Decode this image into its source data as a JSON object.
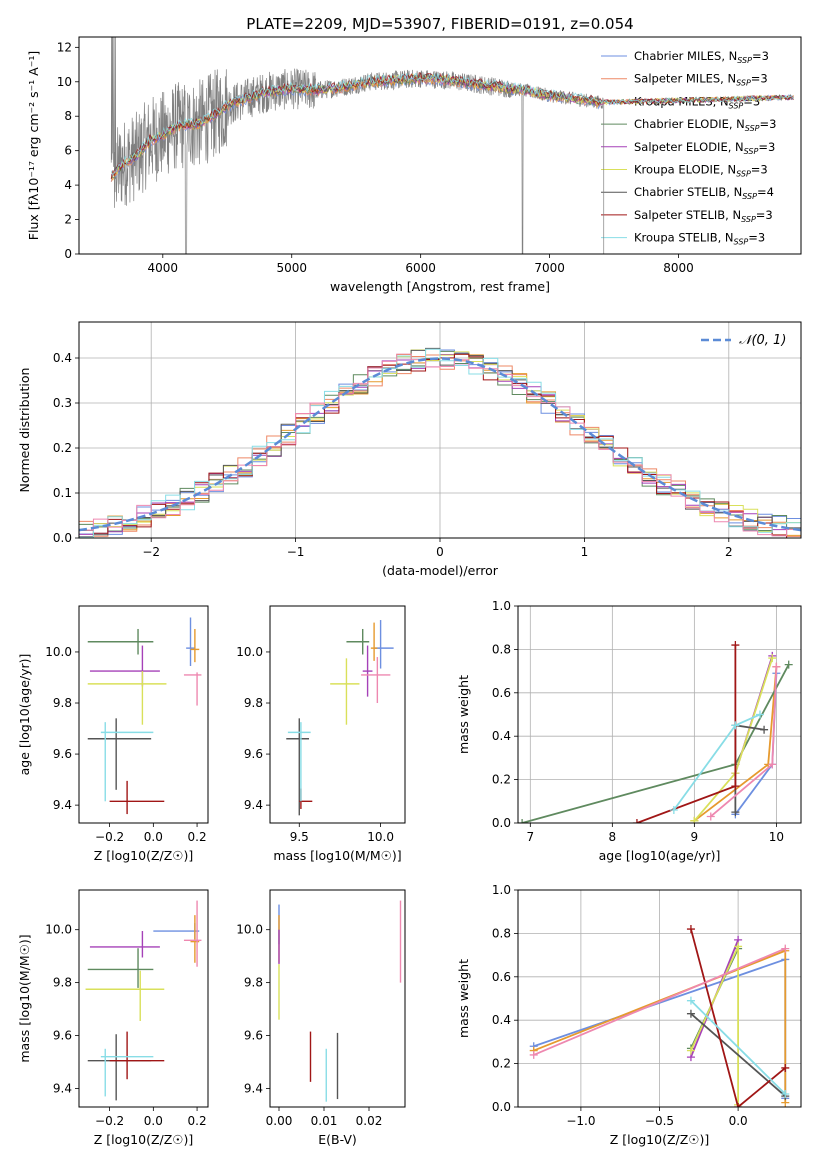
{
  "title": "PLATE=2209, MJD=53907, FIBERID=0191, z=0.054",
  "colors": [
    "#6d8fe0",
    "#ee8866",
    "#e69a2e",
    "#5f8a5f",
    "#a541b8",
    "#d9e05a",
    "#555555",
    "#a01616",
    "#88dde6",
    "#ee88b0"
  ],
  "legend": [
    {
      "label": "Chabrier MILES, N$_{SSP}$=3",
      "base": "Chabrier MILES, N",
      "sub": "SSP",
      "tail": "=3",
      "color": "#6d8fe0"
    },
    {
      "label": "Salpeter MILES, N$_{SSP}$=3",
      "base": "Salpeter MILES, N",
      "sub": "SSP",
      "tail": "=3",
      "color": "#ee8866"
    },
    {
      "label": "Kroupa MILES, N$_{SSP}$=3",
      "base": "Kroupa MILES, N",
      "sub": "SSP",
      "tail": "=3",
      "color": "#e69a2e"
    },
    {
      "label": "Chabrier ELODIE, N$_{SSP}$=3",
      "base": "Chabrier ELODIE, N",
      "sub": "SSP",
      "tail": "=3",
      "color": "#5f8a5f"
    },
    {
      "label": "Salpeter ELODIE, N$_{SSP}$=3",
      "base": "Salpeter ELODIE, N",
      "sub": "SSP",
      "tail": "=3",
      "color": "#a541b8"
    },
    {
      "label": "Kroupa ELODIE, N$_{SSP}$=3",
      "base": "Kroupa ELODIE, N",
      "sub": "SSP",
      "tail": "=3",
      "color": "#d9e05a"
    },
    {
      "label": "Chabrier STELIB, N$_{SSP}$=4",
      "base": "Chabrier STELIB, N",
      "sub": "SSP",
      "tail": "=4",
      "color": "#555555"
    },
    {
      "label": "Salpeter STELIB, N$_{SSP}$=3",
      "base": "Salpeter STELIB, N",
      "sub": "SSP",
      "tail": "=3",
      "color": "#a01616"
    },
    {
      "label": "Kroupa STELIB, N$_{SSP}$=3",
      "base": "Kroupa STELIB, N",
      "sub": "SSP",
      "tail": "=3",
      "color": "#88dde6"
    }
  ],
  "chart_data": [
    {
      "id": "spectrum",
      "type": "line",
      "title": "PLATE=2209, MJD=53907, FIBERID=0191, z=0.054",
      "xlabel": "wavelength [Angstrom, rest frame]",
      "ylabel": "Flux [fλ10⁻¹⁷ erg cm⁻² s⁻¹ A⁻¹]",
      "xlim": [
        3350,
        8950
      ],
      "ylim": [
        0,
        12.6
      ],
      "xticks": [
        4000,
        5000,
        6000,
        7000,
        8000
      ],
      "yticks": [
        0,
        2,
        4,
        6,
        8,
        10,
        12
      ],
      "grid": false,
      "legend_position": "top-right",
      "data_color": "#808080",
      "data_range": [
        3600,
        7420
      ],
      "model_envelope": {
        "x": [
          3600,
          3700,
          3800,
          3900,
          4000,
          4100,
          4200,
          4300,
          4400,
          4500,
          4600,
          4800,
          5000,
          5200,
          5400,
          5600,
          5800,
          6000,
          6200,
          6400,
          6600,
          6800,
          7000,
          7200,
          7400
        ],
        "y": [
          4.5,
          5.3,
          5.7,
          6.6,
          6.9,
          7.4,
          7.5,
          7.6,
          8.1,
          8.6,
          8.9,
          9.4,
          9.6,
          9.5,
          9.7,
          10.0,
          10.1,
          10.2,
          10.1,
          9.9,
          9.7,
          9.5,
          9.2,
          9.0,
          8.8
        ]
      }
    },
    {
      "id": "residual-histogram",
      "type": "line",
      "xlabel": "(data-model)/error",
      "ylabel": "Normed distribution",
      "xlim": [
        -2.5,
        2.5
      ],
      "ylim": [
        0,
        0.48
      ],
      "xticks": [
        -2,
        -1,
        0,
        1,
        2
      ],
      "yticks": [
        0.0,
        0.1,
        0.2,
        0.3,
        0.4
      ],
      "grid": true,
      "legend_position": "top-right",
      "reference_curve": {
        "label": "𝒩(0, 1)",
        "color": "#5b8bd6"
      },
      "bin_width": 0.1
    },
    {
      "id": "age-vs-metallicity",
      "type": "scatter",
      "xlabel": "Z [log10(Z/Z☉)]",
      "ylabel": "age [log10(age/yr)]",
      "xlim": [
        -0.34,
        0.25
      ],
      "ylim": [
        9.33,
        10.18
      ],
      "xticks": [
        -0.2,
        0.0,
        0.2
      ],
      "yticks": [
        9.4,
        9.6,
        9.8,
        10.0
      ],
      "grid": false,
      "errorbars": [
        {
          "x": 0.17,
          "y": 10.015,
          "xerr": [
            0.02,
            0.02
          ],
          "yerr": [
            0.07,
            0.12
          ],
          "color": "#6d8fe0"
        },
        {
          "x": 0.19,
          "y": 10.01,
          "xerr": [
            0.02,
            0.02
          ],
          "yerr": [
            0.05,
            0.08
          ],
          "color": "#e69a2e"
        },
        {
          "x": -0.07,
          "y": 10.04,
          "xerr": [
            0.23,
            0.07
          ],
          "yerr": [
            0.05,
            0.05
          ],
          "color": "#5f8a5f"
        },
        {
          "x": -0.05,
          "y": 9.925,
          "xerr": [
            0.24,
            0.08
          ],
          "yerr": [
            0.06,
            0.1
          ],
          "color": "#a541b8"
        },
        {
          "x": -0.05,
          "y": 9.875,
          "xerr": [
            0.25,
            0.11
          ],
          "yerr": [
            0.16,
            0.05
          ],
          "color": "#d9e05a"
        },
        {
          "x": -0.17,
          "y": 9.66,
          "xerr": [
            0.13,
            0.16
          ],
          "yerr": [
            0.2,
            0.08
          ],
          "color": "#555555"
        },
        {
          "x": -0.12,
          "y": 9.415,
          "xerr": [
            0.08,
            0.17
          ],
          "yerr": [
            0.05,
            0.08
          ],
          "color": "#a01616"
        },
        {
          "x": -0.22,
          "y": 9.685,
          "xerr": [
            0.02,
            0.22
          ],
          "yerr": [
            0.27,
            0.04
          ],
          "color": "#88dde6"
        },
        {
          "x": 0.2,
          "y": 9.91,
          "xerr": [
            0.06,
            0.02
          ],
          "yerr": [
            0.12,
            0.01
          ],
          "color": "#ee88b0"
        }
      ]
    },
    {
      "id": "age-vs-mass",
      "type": "scatter",
      "xlabel": "mass [log10(M/M☉)]",
      "ylabel": "",
      "xlim": [
        9.32,
        10.15
      ],
      "ylim": [
        9.33,
        10.18
      ],
      "xticks": [
        9.5,
        10.0
      ],
      "yticks": [
        9.4,
        9.6,
        9.8,
        10.0
      ],
      "grid": false,
      "errorbars": [
        {
          "x": 10.0,
          "y": 10.015,
          "xerr": [
            0.04,
            0.08
          ],
          "yerr": [
            0.08,
            0.11
          ],
          "color": "#6d8fe0"
        },
        {
          "x": 9.96,
          "y": 10.015,
          "xerr": [
            0.02,
            0.02
          ],
          "yerr": [
            0.05,
            0.1
          ],
          "color": "#e69a2e"
        },
        {
          "x": 9.89,
          "y": 10.04,
          "xerr": [
            0.1,
            0.04
          ],
          "yerr": [
            0.05,
            0.05
          ],
          "color": "#5f8a5f"
        },
        {
          "x": 9.92,
          "y": 9.925,
          "xerr": [
            0.03,
            0.03
          ],
          "yerr": [
            0.1,
            0.1
          ],
          "color": "#a541b8"
        },
        {
          "x": 9.79,
          "y": 9.875,
          "xerr": [
            0.1,
            0.08
          ],
          "yerr": [
            0.16,
            0.1
          ],
          "color": "#d9e05a"
        },
        {
          "x": 9.5,
          "y": 9.66,
          "xerr": [
            0.08,
            0.06
          ],
          "yerr": [
            0.3,
            0.08
          ],
          "color": "#555555"
        },
        {
          "x": 9.51,
          "y": 9.415,
          "xerr": [
            0.01,
            0.07
          ],
          "yerr": [
            0.03,
            0.05
          ],
          "color": "#a01616"
        },
        {
          "x": 9.51,
          "y": 9.685,
          "xerr": [
            0.08,
            0.06
          ],
          "yerr": [
            0.27,
            0.04
          ],
          "color": "#88dde6"
        },
        {
          "x": 9.98,
          "y": 9.91,
          "xerr": [
            0.1,
            0.08
          ],
          "yerr": [
            0.11,
            0.07
          ],
          "color": "#ee88b0"
        }
      ]
    },
    {
      "id": "mass-weight-vs-age",
      "type": "line",
      "xlabel": "age [log10(age/yr)]",
      "ylabel": "mass weight",
      "xlim": [
        6.85,
        10.3
      ],
      "ylim": [
        0,
        1.0
      ],
      "xticks": [
        7,
        8,
        9,
        10
      ],
      "yticks": [
        0.0,
        0.2,
        0.4,
        0.6,
        0.8,
        1.0
      ],
      "grid": true,
      "series": [
        {
          "x": [
            9.5,
            9.95,
            10.0
          ],
          "y": [
            0.04,
            0.27,
            0.69
          ],
          "color": "#6d8fe0"
        },
        {
          "x": [
            9.0,
            9.9,
            10.0
          ],
          "y": [
            0.01,
            0.27,
            0.72
          ],
          "color": "#e69a2e"
        },
        {
          "x": [
            6.9,
            9.5,
            10.15
          ],
          "y": [
            0.0,
            0.27,
            0.73
          ],
          "color": "#5f8a5f"
        },
        {
          "x": [
            9.5,
            9.95
          ],
          "y": [
            0.23,
            0.77
          ],
          "color": "#a541b8"
        },
        {
          "x": [
            9.0,
            9.5,
            9.95
          ],
          "y": [
            0.01,
            0.23,
            0.76
          ],
          "color": "#d9e05a"
        },
        {
          "x": [
            9.5,
            9.5,
            9.85
          ],
          "y": [
            0.05,
            0.45,
            0.43
          ],
          "color": "#555555"
        },
        {
          "x": [
            8.3,
            9.5,
            9.5
          ],
          "y": [
            0.0,
            0.17,
            0.82
          ],
          "color": "#a01616"
        },
        {
          "x": [
            8.75,
            9.5,
            9.8
          ],
          "y": [
            0.06,
            0.45,
            0.5
          ],
          "color": "#88dde6"
        },
        {
          "x": [
            9.2,
            9.95,
            10.0
          ],
          "y": [
            0.03,
            0.27,
            0.72
          ],
          "color": "#ee88b0"
        }
      ]
    },
    {
      "id": "mass-vs-metallicity",
      "type": "scatter",
      "xlabel": "Z [log10(Z/Z☉)]",
      "ylabel": "mass [log10(M/M☉)]",
      "xlim": [
        -0.34,
        0.25
      ],
      "ylim": [
        9.33,
        10.15
      ],
      "xticks": [
        -0.2,
        0.0,
        0.2
      ],
      "yticks": [
        9.4,
        9.6,
        9.8,
        10.0
      ],
      "grid": false,
      "errorbars": [
        {
          "x": 0.19,
          "y": 9.995,
          "xerr": [
            0.19,
            0.02
          ],
          "yerr": [
            0.03,
            0.03
          ],
          "color": "#6d8fe0"
        },
        {
          "x": 0.19,
          "y": 9.955,
          "xerr": [
            0.02,
            0.02
          ],
          "yerr": [
            0.08,
            0.1
          ],
          "color": "#e69a2e"
        },
        {
          "x": -0.07,
          "y": 9.85,
          "xerr": [
            0.23,
            0.07
          ],
          "yerr": [
            0.07,
            0.08
          ],
          "color": "#5f8a5f"
        },
        {
          "x": -0.05,
          "y": 9.935,
          "xerr": [
            0.24,
            0.08
          ],
          "yerr": [
            0.04,
            0.06
          ],
          "color": "#a541b8"
        },
        {
          "x": -0.06,
          "y": 9.775,
          "xerr": [
            0.25,
            0.11
          ],
          "yerr": [
            0.12,
            0.07
          ],
          "color": "#d9e05a"
        },
        {
          "x": -0.17,
          "y": 9.505,
          "xerr": [
            0.13,
            0.16
          ],
          "yerr": [
            0.15,
            0.1
          ],
          "color": "#555555"
        },
        {
          "x": -0.12,
          "y": 9.505,
          "xerr": [
            0.08,
            0.17
          ],
          "yerr": [
            0.07,
            0.11
          ],
          "color": "#a01616"
        },
        {
          "x": -0.22,
          "y": 9.52,
          "xerr": [
            0.02,
            0.22
          ],
          "yerr": [
            0.15,
            0.03
          ],
          "color": "#88dde6"
        },
        {
          "x": 0.2,
          "y": 9.96,
          "xerr": [
            0.06,
            0.02
          ],
          "yerr": [
            0.1,
            0.15
          ],
          "color": "#ee88b0"
        }
      ]
    },
    {
      "id": "mass-vs-extinction",
      "type": "scatter",
      "xlabel": "E(B-V)",
      "ylabel": "",
      "xlim": [
        -0.002,
        0.028
      ],
      "ylim": [
        9.33,
        10.15
      ],
      "xticks": [
        0.0,
        0.01,
        0.02
      ],
      "yticks": [
        9.4,
        9.6,
        9.8,
        10.0
      ],
      "grid": false,
      "errorbars": [
        {
          "x": 0.0,
          "y": 9.995,
          "xerr": [
            0,
            0
          ],
          "yerr": [
            0.05,
            0.1
          ],
          "color": "#6d8fe0"
        },
        {
          "x": 0.0,
          "y": 9.955,
          "xerr": [
            0,
            0
          ],
          "yerr": [
            0.08,
            0.1
          ],
          "color": "#e69a2e"
        },
        {
          "x": 0.0,
          "y": 9.93,
          "xerr": [
            0,
            0
          ],
          "yerr": [
            0.06,
            0.07
          ],
          "color": "#a541b8"
        },
        {
          "x": 0.0,
          "y": 9.78,
          "xerr": [
            0,
            0
          ],
          "yerr": [
            0.12,
            0.09
          ],
          "color": "#d9e05a"
        },
        {
          "x": 0.007,
          "y": 9.515,
          "xerr": [
            0,
            0
          ],
          "yerr": [
            0.09,
            0.1
          ],
          "color": "#a01616"
        },
        {
          "x": 0.0105,
          "y": 9.45,
          "xerr": [
            0,
            0
          ],
          "yerr": [
            0.1,
            0.1
          ],
          "color": "#88dde6"
        },
        {
          "x": 0.013,
          "y": 9.48,
          "xerr": [
            0,
            0
          ],
          "yerr": [
            0.12,
            0.13
          ],
          "color": "#555555"
        },
        {
          "x": 0.027,
          "y": 9.93,
          "xerr": [
            0,
            0
          ],
          "yerr": [
            0.13,
            0.18
          ],
          "color": "#ee88b0"
        }
      ]
    },
    {
      "id": "mass-weight-vs-metallicity",
      "type": "line",
      "xlabel": "Z [log10(Z/Z☉)]",
      "ylabel": "mass weight",
      "xlim": [
        -1.4,
        0.4
      ],
      "ylim": [
        0,
        1.0
      ],
      "xticks": [
        -1.0,
        -0.5,
        0.0
      ],
      "yticks": [
        0.0,
        0.2,
        0.4,
        0.6,
        0.8,
        1.0
      ],
      "grid": true,
      "series": [
        {
          "x": [
            -1.3,
            0.3,
            0.3
          ],
          "y": [
            0.28,
            0.68,
            0.04
          ],
          "color": "#6d8fe0"
        },
        {
          "x": [
            -1.3,
            0.3,
            0.3
          ],
          "y": [
            0.26,
            0.72,
            0.02
          ],
          "color": "#e69a2e"
        },
        {
          "x": [
            -0.3,
            0.0
          ],
          "y": [
            0.27,
            0.73
          ],
          "color": "#5f8a5f"
        },
        {
          "x": [
            -0.3,
            0.0
          ],
          "y": [
            0.23,
            0.77
          ],
          "color": "#a541b8"
        },
        {
          "x": [
            -0.3,
            0.0,
            0.0
          ],
          "y": [
            0.26,
            0.74,
            0.01
          ],
          "color": "#d9e05a"
        },
        {
          "x": [
            -0.3,
            0.3
          ],
          "y": [
            0.43,
            0.05
          ],
          "color": "#555555"
        },
        {
          "x": [
            -0.3,
            0.0,
            0.3
          ],
          "y": [
            0.82,
            0.0,
            0.18
          ],
          "color": "#a01616"
        },
        {
          "x": [
            -0.3,
            0.3
          ],
          "y": [
            0.49,
            0.06
          ],
          "color": "#88dde6"
        },
        {
          "x": [
            -1.3,
            0.3
          ],
          "y": [
            0.24,
            0.73
          ],
          "color": "#ee88b0"
        }
      ]
    }
  ]
}
